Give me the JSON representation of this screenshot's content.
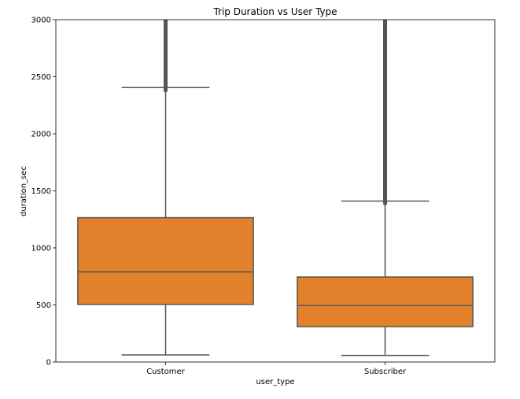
{
  "chart_data": {
    "type": "box",
    "title": "Trip Duration vs User Type",
    "xlabel": "user_type",
    "ylabel": "duration_sec",
    "ylim": [
      0,
      3000
    ],
    "yticks": [
      "0",
      "500",
      "1000",
      "1500",
      "2000",
      "2500",
      "3000"
    ],
    "grid": false,
    "box_color": "#e1812c",
    "line_color": "#555555",
    "categories": [
      "Customer",
      "Subscriber"
    ],
    "boxes": [
      {
        "category": "Customer",
        "whisker_low": 62,
        "q1": 505,
        "median": 790,
        "q3": 1265,
        "whisker_high": 2405,
        "outliers_from": 2380,
        "outliers_to": 3000
      },
      {
        "category": "Subscriber",
        "whisker_low": 58,
        "q1": 310,
        "median": 495,
        "q3": 745,
        "whisker_high": 1410,
        "outliers_from": 1390,
        "outliers_to": 3000
      }
    ]
  }
}
